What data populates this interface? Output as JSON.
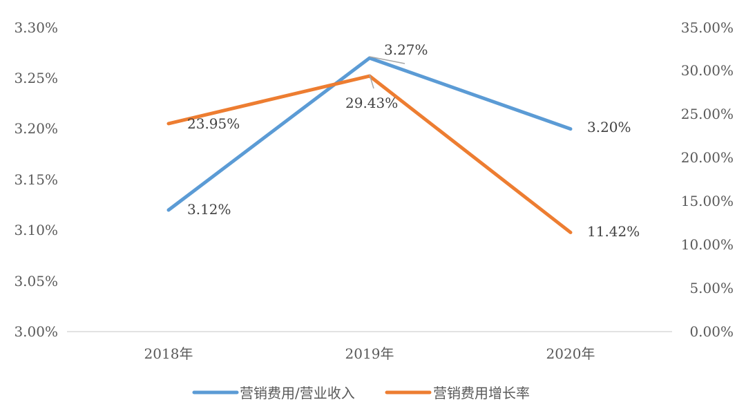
{
  "chart_data": {
    "type": "line",
    "categories": [
      "2018年",
      "2019年",
      "2020年"
    ],
    "series": [
      {
        "name": "营销费用/营业收入",
        "axis": "left",
        "color": "#5B9BD5",
        "values": [
          3.12,
          3.27,
          3.2
        ],
        "labels": [
          "3.12%",
          "3.27%",
          "3.20%"
        ]
      },
      {
        "name": "营销费用增长率",
        "axis": "right",
        "color": "#ED7D31",
        "values": [
          23.95,
          29.43,
          11.42
        ],
        "labels": [
          "23.95%",
          "29.43%",
          "11.42%"
        ]
      }
    ],
    "y_left": {
      "min": 3.0,
      "max": 3.3,
      "ticks": [
        "3.00%",
        "3.05%",
        "3.10%",
        "3.15%",
        "3.20%",
        "3.25%",
        "3.30%"
      ]
    },
    "y_right": {
      "min": 0,
      "max": 35,
      "ticks": [
        "0.00%",
        "5.00%",
        "10.00%",
        "15.00%",
        "20.00%",
        "25.00%",
        "30.00%",
        "35.00%"
      ]
    },
    "grid": false,
    "legend": "bottom"
  }
}
